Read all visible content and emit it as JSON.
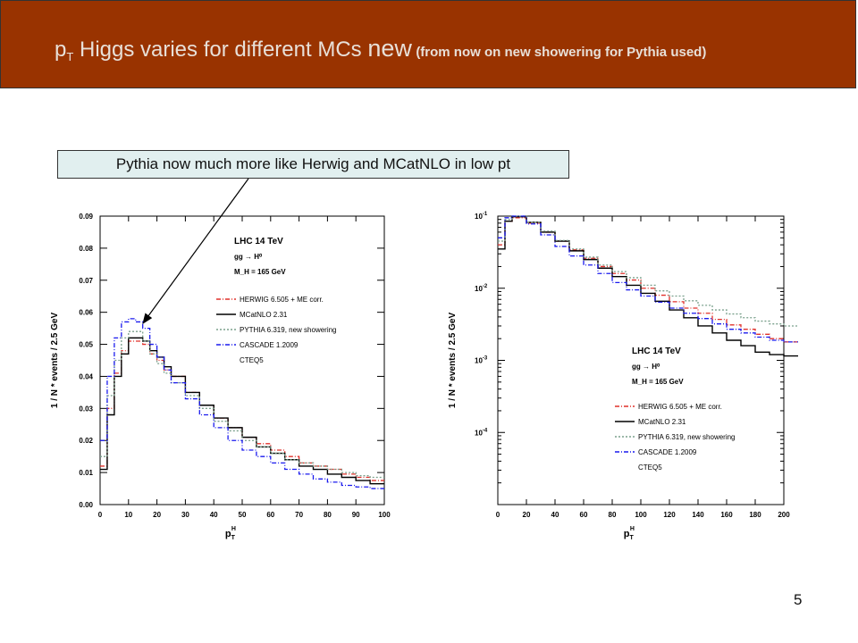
{
  "slide": {
    "title_main": "p",
    "title_sub": "T",
    "title_rest": " Higgs varies for different MCs ",
    "title_new": "new",
    "title_note": "(from now on new showering for Pythia used)",
    "callout": "Pythia now much more like Herwig and MCatNLO in low pt",
    "page_number": "5"
  },
  "colors": {
    "title_bg": "#993300",
    "callout_bg": "#e1efef",
    "herwig": "#e0302a",
    "mcatnlo": "#000000",
    "pythia": "#7aa08c",
    "cascade": "#1a1aee"
  },
  "chart_data": [
    {
      "type": "line",
      "scale": "linear",
      "xlabel": "p",
      "xlabel_sub": "T",
      "xlabel_sup": "H",
      "ylabel": "1 / N  *  events / 2.5 GeV",
      "xlim": [
        0,
        100
      ],
      "ylim": [
        0,
        0.09
      ],
      "xticks": [
        "0",
        "10",
        "20",
        "30",
        "40",
        "50",
        "60",
        "70",
        "80",
        "90",
        "100"
      ],
      "yticks": [
        "0.00",
        "0.01",
        "0.02",
        "0.03",
        "0.04",
        "0.05",
        "0.06",
        "0.07",
        "0.08",
        "0.09"
      ],
      "annotation": [
        "LHC 14 TeV",
        "gg → H⁰",
        "M_H = 165 GeV"
      ],
      "legend_position": "right",
      "legend_extra": "CTEQ5",
      "series": [
        {
          "name": "HERWIG 6.505 + ME corr.",
          "style": "dashdot",
          "x": [
            0,
            2.5,
            5,
            7.5,
            10,
            12.5,
            15,
            17.5,
            20,
            22.5,
            25,
            30,
            35,
            40,
            45,
            50,
            55,
            60,
            65,
            70,
            75,
            80,
            85,
            90,
            95
          ],
          "values": [
            0.012,
            0.03,
            0.041,
            0.048,
            0.051,
            0.051,
            0.05,
            0.047,
            0.045,
            0.042,
            0.04,
            0.035,
            0.031,
            0.027,
            0.024,
            0.021,
            0.019,
            0.017,
            0.015,
            0.013,
            0.012,
            0.011,
            0.0095,
            0.0085,
            0.0075
          ]
        },
        {
          "name": "MCatNLO 2.31",
          "style": "solid",
          "x": [
            0,
            2.5,
            5,
            7.5,
            10,
            12.5,
            15,
            17.5,
            20,
            22.5,
            25,
            30,
            35,
            40,
            45,
            50,
            55,
            60,
            65,
            70,
            75,
            80,
            85,
            90,
            95
          ],
          "values": [
            0.011,
            0.028,
            0.04,
            0.047,
            0.052,
            0.052,
            0.051,
            0.048,
            0.046,
            0.043,
            0.04,
            0.035,
            0.031,
            0.027,
            0.024,
            0.021,
            0.018,
            0.016,
            0.014,
            0.012,
            0.011,
            0.0095,
            0.0085,
            0.0075,
            0.0065
          ]
        },
        {
          "name": "PYTHIA 6.319, new showering",
          "style": "dotted",
          "x": [
            0,
            2.5,
            5,
            7.5,
            10,
            12.5,
            15,
            17.5,
            20,
            22.5,
            25,
            30,
            35,
            40,
            45,
            50,
            55,
            60,
            65,
            70,
            75,
            80,
            85,
            90,
            95
          ],
          "values": [
            0.015,
            0.034,
            0.045,
            0.052,
            0.054,
            0.054,
            0.051,
            0.047,
            0.044,
            0.041,
            0.038,
            0.034,
            0.03,
            0.026,
            0.023,
            0.02,
            0.018,
            0.016,
            0.014,
            0.013,
            0.012,
            0.011,
            0.01,
            0.009,
            0.0085
          ]
        },
        {
          "name": "CASCADE 1.2009",
          "style": "dashdot",
          "x": [
            0,
            2.5,
            5,
            7.5,
            10,
            12.5,
            15,
            17.5,
            20,
            22.5,
            25,
            30,
            35,
            40,
            45,
            50,
            55,
            60,
            65,
            70,
            75,
            80,
            85,
            90,
            95
          ],
          "values": [
            0.02,
            0.04,
            0.052,
            0.057,
            0.058,
            0.057,
            0.055,
            0.05,
            0.046,
            0.042,
            0.038,
            0.033,
            0.028,
            0.024,
            0.02,
            0.017,
            0.015,
            0.013,
            0.011,
            0.0095,
            0.008,
            0.007,
            0.006,
            0.0055,
            0.005
          ]
        }
      ]
    },
    {
      "type": "line",
      "scale": "log",
      "xlabel": "p",
      "xlabel_sub": "T",
      "xlabel_sup": "H",
      "ylabel": "1 / N  *  events / 2.5 GeV",
      "xlim": [
        0,
        200
      ],
      "ylim": [
        1e-05,
        0.1
      ],
      "xticks": [
        "0",
        "20",
        "40",
        "60",
        "80",
        "100",
        "120",
        "140",
        "160",
        "180",
        "200"
      ],
      "yticks": [
        {
          "base": "10",
          "exp": "-1"
        },
        {
          "base": "10",
          "exp": "-2"
        },
        {
          "base": "10",
          "exp": "-3"
        },
        {
          "base": "10",
          "exp": "-4"
        }
      ],
      "annotation": [
        "LHC 14 TeV",
        "gg → H⁰",
        "M_H = 165 GeV"
      ],
      "legend_position": "bottom-right",
      "legend_extra": "CTEQ5",
      "series": [
        {
          "name": "HERWIG 6.505 + ME corr.",
          "style": "dashdot",
          "x": [
            0,
            5,
            10,
            20,
            30,
            40,
            50,
            60,
            70,
            80,
            90,
            100,
            110,
            120,
            130,
            140,
            150,
            160,
            170,
            180,
            190,
            200
          ],
          "values": [
            0.04,
            0.085,
            0.095,
            0.08,
            0.06,
            0.045,
            0.034,
            0.026,
            0.02,
            0.016,
            0.013,
            0.01,
            0.008,
            0.0065,
            0.0053,
            0.0045,
            0.0037,
            0.0031,
            0.0027,
            0.0023,
            0.002,
            0.0018
          ]
        },
        {
          "name": "MCatNLO 2.31",
          "style": "solid",
          "x": [
            0,
            5,
            10,
            20,
            30,
            40,
            50,
            60,
            70,
            80,
            90,
            100,
            110,
            120,
            130,
            140,
            150,
            160,
            170,
            180,
            190,
            200
          ],
          "values": [
            0.035,
            0.085,
            0.098,
            0.082,
            0.06,
            0.045,
            0.033,
            0.025,
            0.019,
            0.0145,
            0.011,
            0.0085,
            0.0066,
            0.005,
            0.0039,
            0.003,
            0.0024,
            0.0019,
            0.0016,
            0.0013,
            0.0012,
            0.00115
          ]
        },
        {
          "name": "PYTHIA 6.319, new showering",
          "style": "dotted",
          "x": [
            0,
            5,
            10,
            20,
            30,
            40,
            50,
            60,
            70,
            80,
            90,
            100,
            110,
            120,
            130,
            140,
            150,
            160,
            170,
            180,
            190,
            200
          ],
          "values": [
            0.045,
            0.09,
            0.1,
            0.082,
            0.062,
            0.046,
            0.035,
            0.027,
            0.021,
            0.017,
            0.014,
            0.011,
            0.0092,
            0.0078,
            0.0067,
            0.0058,
            0.005,
            0.0044,
            0.0039,
            0.0035,
            0.0032,
            0.003
          ]
        },
        {
          "name": "CASCADE 1.2009",
          "style": "dashdot",
          "x": [
            0,
            5,
            10,
            20,
            30,
            40,
            50,
            60,
            70,
            80,
            90,
            100,
            110,
            120,
            130,
            140,
            150,
            160,
            170,
            180,
            190,
            200
          ],
          "values": [
            0.05,
            0.095,
            0.1,
            0.078,
            0.055,
            0.038,
            0.028,
            0.021,
            0.016,
            0.012,
            0.0095,
            0.0078,
            0.0064,
            0.0053,
            0.0045,
            0.0038,
            0.0032,
            0.0027,
            0.0024,
            0.0021,
            0.0019,
            0.0018
          ]
        }
      ]
    }
  ]
}
